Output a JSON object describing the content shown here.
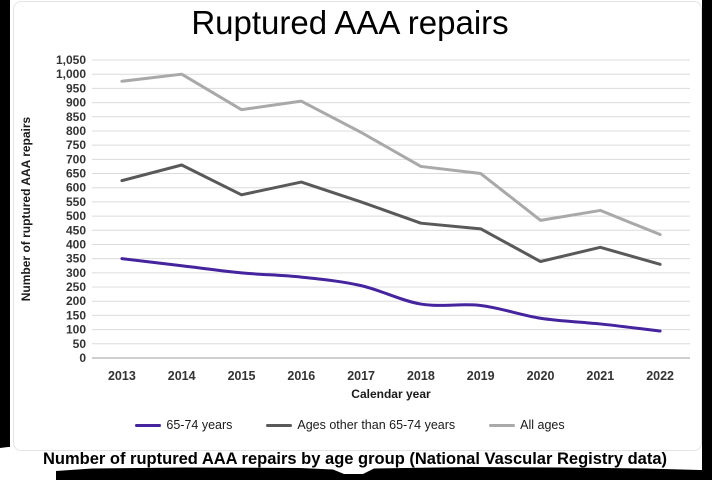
{
  "title": "Ruptured AAA repairs",
  "caption": "Number of ruptured AAA repairs by age group (National Vascular Registry data)",
  "colors": {
    "purple": "#45249E",
    "dark_gray": "#595959",
    "light_gray": "#A9A9A9",
    "gridline": "#dcdcdc",
    "axis_line": "#bdbdbd",
    "tick_text": "#333333",
    "frame_black": "#000000"
  },
  "chart_data": {
    "type": "line",
    "title": "Ruptured AAA repairs",
    "xlabel": "Calendar year",
    "ylabel": "Number of ruptured AAA repairs",
    "categories": [
      "2013",
      "2014",
      "2015",
      "2016",
      "2017",
      "2018",
      "2019",
      "2020",
      "2021",
      "2022"
    ],
    "series": [
      {
        "name": "65-74 years",
        "color": "#45249E",
        "smooth": true,
        "values": [
          350,
          325,
          300,
          285,
          255,
          190,
          185,
          140,
          120,
          95
        ]
      },
      {
        "name": "Ages other than 65-74 years",
        "color": "#595959",
        "smooth": false,
        "values": [
          625,
          680,
          575,
          620,
          550,
          475,
          455,
          340,
          390,
          330
        ]
      },
      {
        "name": "All ages",
        "color": "#A9A9A9",
        "smooth": false,
        "values": [
          975,
          1000,
          875,
          905,
          795,
          675,
          650,
          485,
          520,
          435
        ]
      }
    ],
    "ylim": [
      0,
      1050
    ],
    "ytick_step": 50,
    "grid": true,
    "legend_position": "bottom"
  }
}
